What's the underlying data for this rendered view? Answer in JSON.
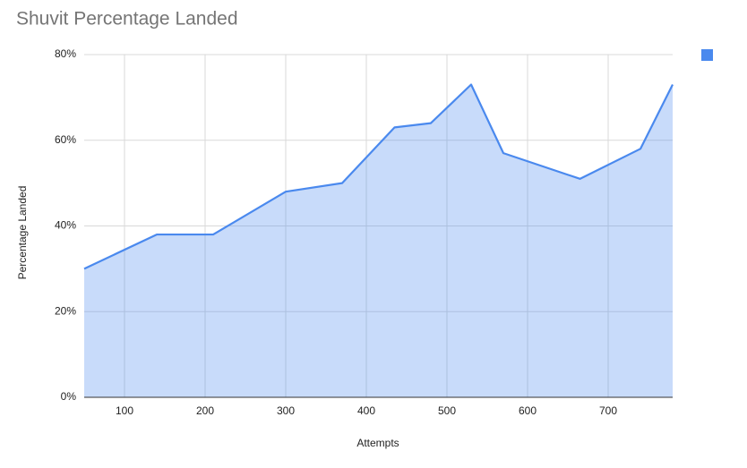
{
  "chart_data": {
    "type": "area",
    "title": "Shuvit Percentage Landed",
    "x_label": "Attempts",
    "y_label": "Percentage Landed",
    "x": [
      50,
      140,
      210,
      300,
      370,
      435,
      480,
      530,
      570,
      665,
      740,
      780
    ],
    "series": [
      {
        "color": "#4a89ee",
        "values": [
          30,
          38,
          38,
          48,
          50,
          63,
          64,
          73,
          57,
          51,
          58,
          73
        ]
      }
    ],
    "xlim": [
      50,
      780
    ],
    "xticks": [
      100,
      200,
      300,
      400,
      500,
      600,
      700
    ],
    "ylim": [
      0,
      80
    ],
    "yticks": [
      {
        "value": 0,
        "label": "0%"
      },
      {
        "value": 20,
        "label": "20%"
      },
      {
        "value": 40,
        "label": "40%"
      },
      {
        "value": 60,
        "label": "60%"
      },
      {
        "value": 80,
        "label": "80%"
      }
    ],
    "grid": true,
    "legend": "top-right"
  }
}
